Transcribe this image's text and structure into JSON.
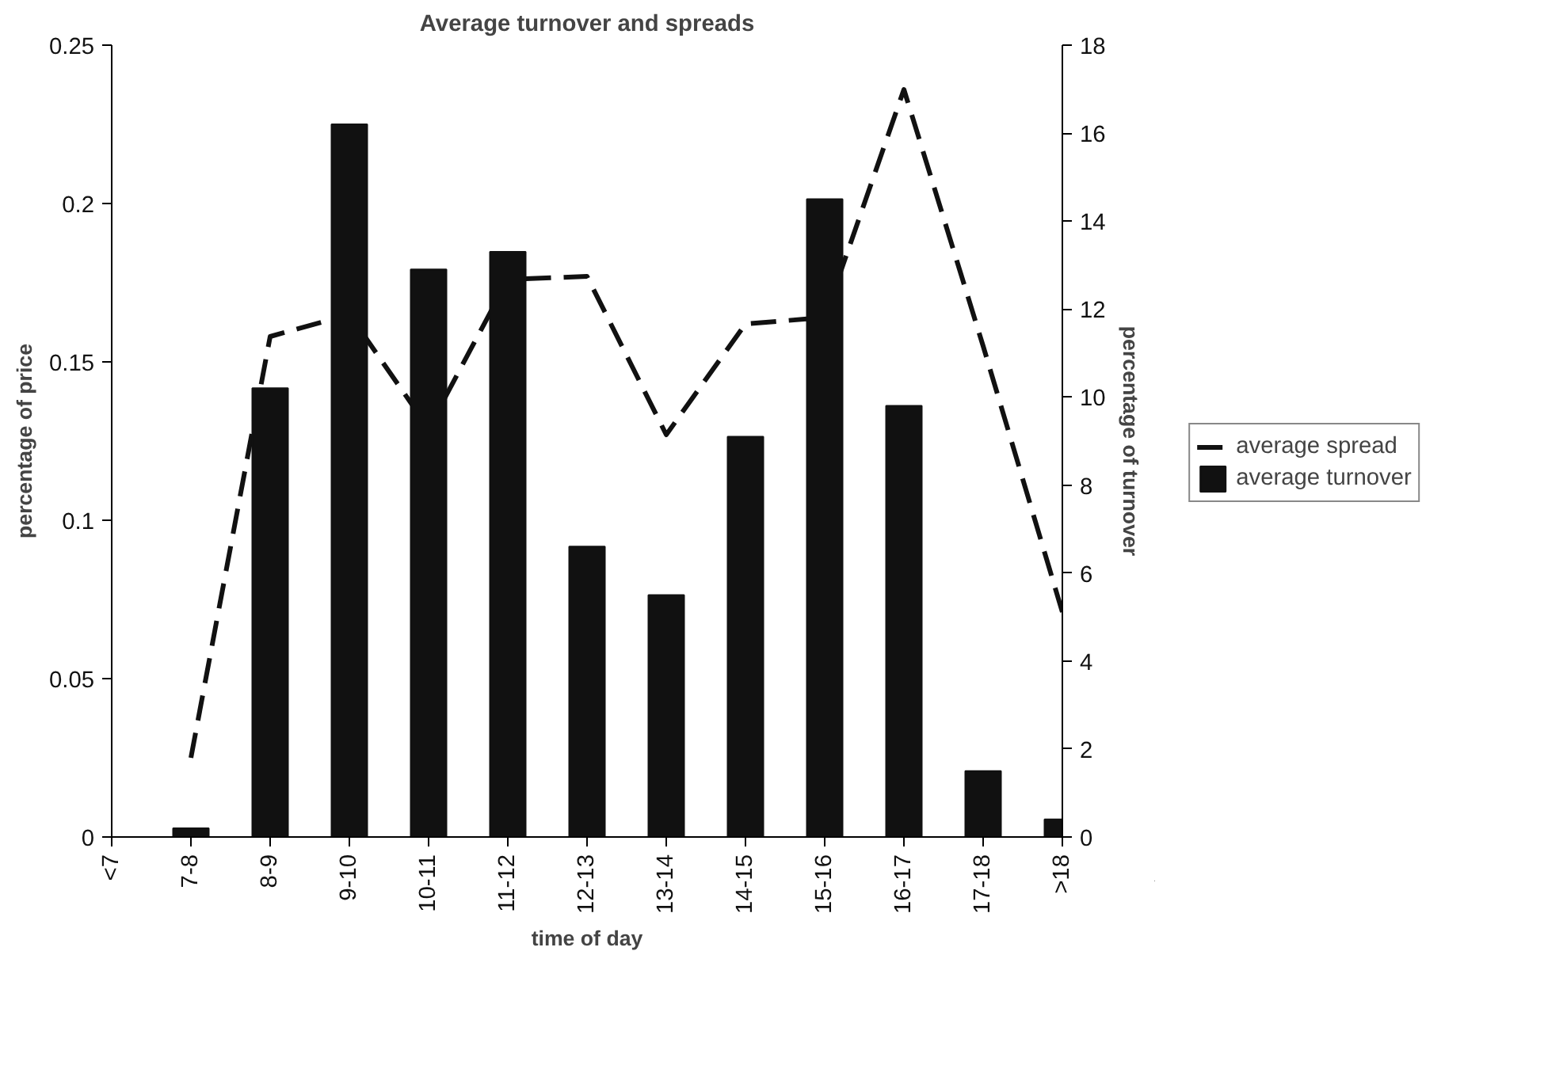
{
  "chart_data": {
    "type": "bar",
    "title": "Average turnover and spreads",
    "xlabel": "time of day",
    "ylabel": "percentage of price",
    "y2label": "percentage of turnover",
    "categories": [
      "<7",
      "7-8",
      "8-9",
      "9-10",
      "10-11",
      "11-12",
      "12-13",
      "13-14",
      "14-15",
      "15-16",
      "16-17",
      "17-18",
      ">18"
    ],
    "series": [
      {
        "name": "average spread",
        "type": "line",
        "color": "#111111",
        "line_style": "dashed",
        "values": [
          null,
          0.025,
          0.158,
          0.165,
          0.129,
          0.176,
          0.177,
          0.127,
          0.162,
          0.164,
          0.236,
          0.155,
          0.071
        ]
      },
      {
        "name": "average turnover",
        "axis": "y2",
        "color": "#111111",
        "values": [
          0,
          0.2,
          10.2,
          16.2,
          12.9,
          13.3,
          6.6,
          5.5,
          9.1,
          14.5,
          9.8,
          1.5,
          0.4
        ]
      }
    ],
    "ylim": [
      0,
      0.25
    ],
    "yticks": [
      0,
      0.05,
      0.1,
      0.15,
      0.2,
      0.25
    ],
    "y2lim": [
      0,
      18
    ],
    "y2ticks": [
      0,
      2,
      4,
      6,
      8,
      10,
      12,
      14,
      16,
      18
    ],
    "legend": "right",
    "grid": false
  }
}
